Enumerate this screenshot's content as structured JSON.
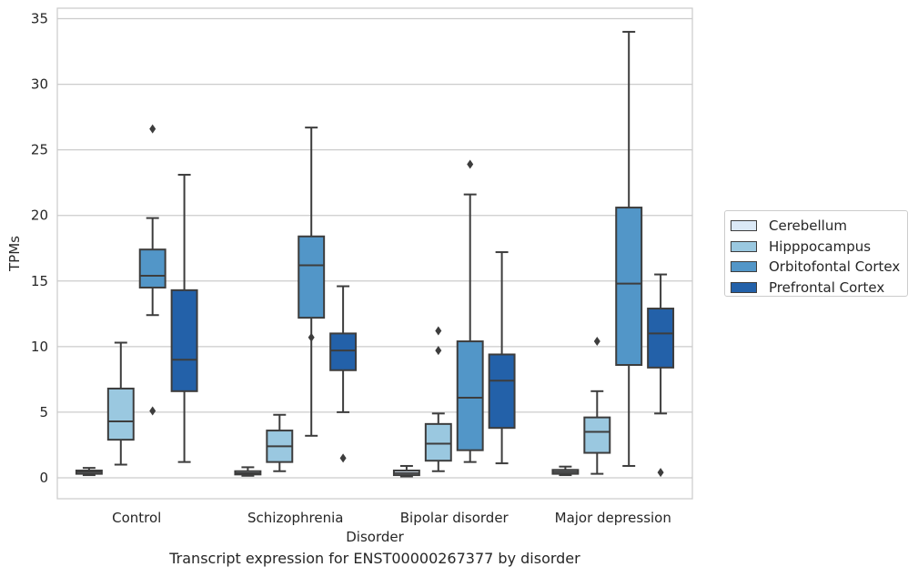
{
  "caption": "Transcript expression for ENST00000267377 by disorder",
  "chart_data": {
    "type": "box",
    "title": "",
    "xlabel": "Disorder",
    "ylabel": "TPMs",
    "ylim": [
      -1.6,
      35.8
    ],
    "yticks": [
      0,
      5,
      10,
      15,
      20,
      25,
      30,
      35
    ],
    "grid": true,
    "legend_position": "right",
    "categories": [
      "Control",
      "Schizophrenia",
      "Bipolar disorder",
      "Major depression"
    ],
    "series": [
      {
        "name": "Cerebellum",
        "color": "#dbe9f6",
        "boxes": [
          {
            "whislo": 0.2,
            "q1": 0.3,
            "med": 0.45,
            "q3": 0.55,
            "whishi": 0.75,
            "fliers": []
          },
          {
            "whislo": 0.15,
            "q1": 0.25,
            "med": 0.35,
            "q3": 0.5,
            "whishi": 0.8,
            "fliers": []
          },
          {
            "whislo": 0.1,
            "q1": 0.2,
            "med": 0.35,
            "q3": 0.55,
            "whishi": 0.9,
            "fliers": []
          },
          {
            "whislo": 0.2,
            "q1": 0.3,
            "med": 0.45,
            "q3": 0.6,
            "whishi": 0.85,
            "fliers": []
          }
        ]
      },
      {
        "name": "Hipppocampus",
        "color": "#9ac8e0",
        "boxes": [
          {
            "whislo": 1.0,
            "q1": 2.9,
            "med": 4.3,
            "q3": 6.8,
            "whishi": 10.3,
            "fliers": []
          },
          {
            "whislo": 0.5,
            "q1": 1.2,
            "med": 2.4,
            "q3": 3.6,
            "whishi": 4.8,
            "fliers": []
          },
          {
            "whislo": 0.5,
            "q1": 1.3,
            "med": 2.6,
            "q3": 4.1,
            "whishi": 4.9,
            "fliers": [
              9.7,
              11.2
            ]
          },
          {
            "whislo": 0.3,
            "q1": 1.9,
            "med": 3.5,
            "q3": 4.6,
            "whishi": 6.6,
            "fliers": [
              10.4
            ]
          }
        ]
      },
      {
        "name": "Orbitofontal Cortex",
        "color": "#5296c8",
        "boxes": [
          {
            "whislo": 12.4,
            "q1": 14.5,
            "med": 15.4,
            "q3": 17.4,
            "whishi": 19.8,
            "fliers": [
              5.1,
              26.6
            ]
          },
          {
            "whislo": 3.2,
            "q1": 12.2,
            "med": 16.2,
            "q3": 18.4,
            "whishi": 26.7,
            "fliers": [
              10.7
            ]
          },
          {
            "whislo": 1.2,
            "q1": 2.1,
            "med": 6.1,
            "q3": 10.4,
            "whishi": 21.6,
            "fliers": [
              23.9
            ]
          },
          {
            "whislo": 0.9,
            "q1": 8.6,
            "med": 14.8,
            "q3": 20.6,
            "whishi": 34.0,
            "fliers": []
          }
        ]
      },
      {
        "name": "Prefrontal Cortex",
        "color": "#2361a9",
        "boxes": [
          {
            "whislo": 1.2,
            "q1": 6.6,
            "med": 9.0,
            "q3": 14.3,
            "whishi": 23.1,
            "fliers": []
          },
          {
            "whislo": 5.0,
            "q1": 8.2,
            "med": 9.7,
            "q3": 11.0,
            "whishi": 14.6,
            "fliers": [
              1.5
            ]
          },
          {
            "whislo": 1.1,
            "q1": 3.8,
            "med": 7.4,
            "q3": 9.4,
            "whishi": 17.2,
            "fliers": []
          },
          {
            "whislo": 4.9,
            "q1": 8.4,
            "med": 11.0,
            "q3": 12.9,
            "whishi": 15.5,
            "fliers": [
              0.4
            ]
          }
        ]
      }
    ]
  }
}
